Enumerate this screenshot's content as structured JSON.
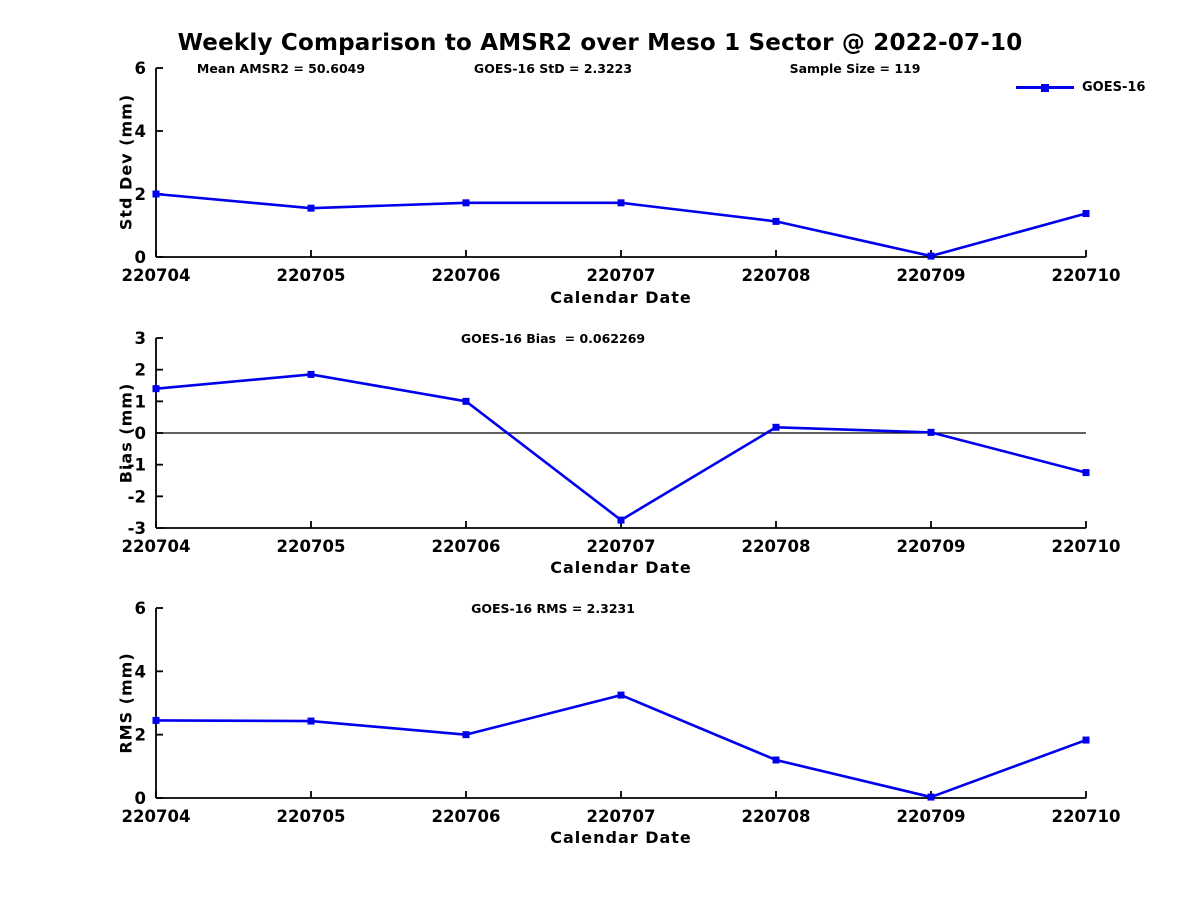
{
  "page": {
    "title": "Weekly Comparison to AMSR2 over Meso 1 Sector @ 2022-07-10"
  },
  "legend": {
    "label": "GOES-16"
  },
  "colors": {
    "line": "#0000EE",
    "axis": "#000000",
    "zero_line": "#000000",
    "background": "#FFFFFF",
    "text": "#000000"
  },
  "chart_data": [
    {
      "type": "line",
      "id": "std-dev",
      "annotations": [
        "Mean AMSR2 = 50.6049",
        "GOES-16 StD = 2.3223",
        "Sample Size = 119"
      ],
      "xlabel": "Calendar Date",
      "ylabel": "Std Dev (mm)",
      "categories": [
        "220704",
        "220705",
        "220706",
        "220707",
        "220708",
        "220709",
        "220710"
      ],
      "series": [
        {
          "name": "GOES-16",
          "values": [
            2.0,
            1.55,
            1.72,
            1.72,
            1.13,
            0.03,
            1.38
          ]
        }
      ],
      "ylim": [
        0,
        6
      ],
      "yticks": [
        0,
        2,
        4,
        6
      ],
      "zero_line": false,
      "grid": false,
      "legend_position": "top-right"
    },
    {
      "type": "line",
      "id": "bias",
      "annotations": [
        "GOES-16 Bias  = 0.062269"
      ],
      "xlabel": "Calendar Date",
      "ylabel": "Bias (mm)",
      "categories": [
        "220704",
        "220705",
        "220706",
        "220707",
        "220708",
        "220709",
        "220710"
      ],
      "series": [
        {
          "name": "GOES-16",
          "values": [
            1.4,
            1.85,
            1.0,
            -2.75,
            0.18,
            0.02,
            -1.25
          ]
        }
      ],
      "ylim": [
        -3,
        3
      ],
      "yticks": [
        -3,
        -2,
        -1,
        0,
        1,
        2,
        3
      ],
      "zero_line": true,
      "grid": false,
      "legend_position": "none"
    },
    {
      "type": "line",
      "id": "rms",
      "annotations": [
        "GOES-16 RMS = 2.3231"
      ],
      "xlabel": "Calendar Date",
      "ylabel": "RMS (mm)",
      "categories": [
        "220704",
        "220705",
        "220706",
        "220707",
        "220708",
        "220709",
        "220710"
      ],
      "series": [
        {
          "name": "GOES-16",
          "values": [
            2.45,
            2.43,
            2.0,
            3.25,
            1.2,
            0.03,
            1.83
          ]
        }
      ],
      "ylim": [
        0,
        6
      ],
      "yticks": [
        0,
        2,
        4,
        6
      ],
      "zero_line": false,
      "grid": false,
      "legend_position": "none"
    }
  ]
}
